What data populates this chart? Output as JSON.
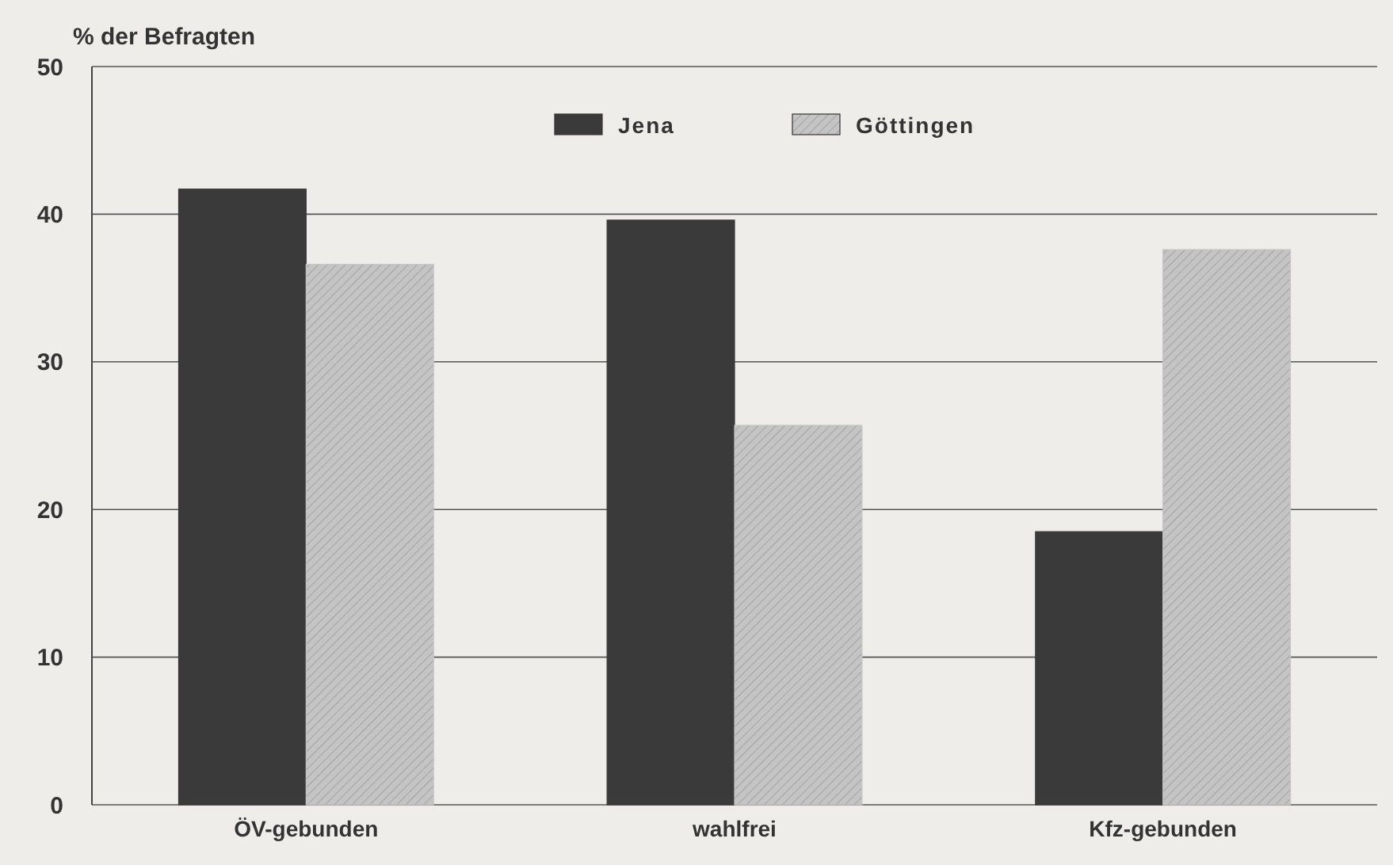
{
  "chart_data": {
    "type": "bar",
    "ylabel": "% der Befragten",
    "categories": [
      "ÖV-gebunden",
      "wahlfrei",
      "Kfz-gebunden"
    ],
    "series": [
      {
        "name": "Jena",
        "color": "#3a3a3a",
        "values": [
          41.7,
          39.6,
          18.5
        ]
      },
      {
        "name": "Göttingen",
        "color": "#c4c4c4",
        "values": [
          36.6,
          25.7,
          37.6
        ]
      }
    ],
    "ylim": [
      0,
      50
    ],
    "yticks": [
      0,
      10,
      20,
      30,
      40,
      50
    ],
    "grid": "y",
    "legend": "top"
  }
}
